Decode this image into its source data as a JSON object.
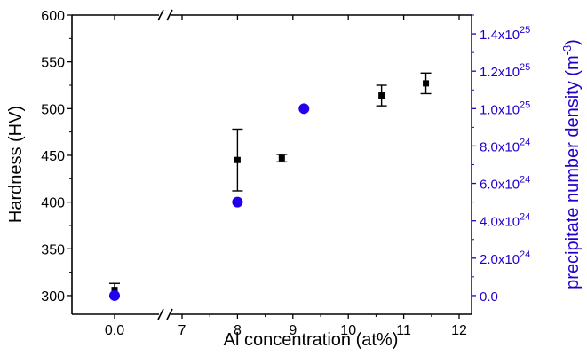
{
  "chart_data": {
    "type": "scatter",
    "xlabel": "Al concentration (at%)",
    "ylabel": "Hardness (HV)",
    "y2label_main": "precipitate number density (m",
    "y2label_sup": "-3",
    "y2label_close": ")",
    "axis_break_x": true,
    "xticks": [
      {
        "value": 0.0,
        "label": "0.0"
      },
      {
        "value": 7,
        "label": "7"
      },
      {
        "value": 8,
        "label": "8"
      },
      {
        "value": 9,
        "label": "9"
      },
      {
        "value": 10,
        "label": "10"
      },
      {
        "value": 11,
        "label": "11"
      },
      {
        "value": 12,
        "label": "12"
      }
    ],
    "ylim": [
      280,
      600
    ],
    "yticks": [
      {
        "value": 300,
        "label": "300"
      },
      {
        "value": 350,
        "label": "350"
      },
      {
        "value": 400,
        "label": "400"
      },
      {
        "value": 450,
        "label": "450"
      },
      {
        "value": 500,
        "label": "500"
      },
      {
        "value": 550,
        "label": "550"
      },
      {
        "value": 600,
        "label": "600"
      }
    ],
    "y2lim": [
      -0.1,
      1.5
    ],
    "y2ticks": [
      {
        "value": 0.0,
        "label": "0.0",
        "exp": ""
      },
      {
        "value": 0.2,
        "label": "2.0x10",
        "exp": "24"
      },
      {
        "value": 0.4,
        "label": "4.0x10",
        "exp": "24"
      },
      {
        "value": 0.6,
        "label": "6.0x10",
        "exp": "24"
      },
      {
        "value": 0.8,
        "label": "8.0x10",
        "exp": "24"
      },
      {
        "value": 1.0,
        "label": "1.0x10",
        "exp": "25"
      },
      {
        "value": 1.2,
        "label": "1.2x10",
        "exp": "25"
      },
      {
        "value": 1.4,
        "label": "1.4x10",
        "exp": "25"
      }
    ],
    "series": [
      {
        "axis": "left",
        "color": "#000000",
        "marker": "square",
        "points": [
          {
            "x": 0.0,
            "y": 306,
            "err": 7
          },
          {
            "x": 8.0,
            "y": 445,
            "err": 33
          },
          {
            "x": 8.8,
            "y": 447,
            "err": 4
          },
          {
            "x": 10.6,
            "y": 514,
            "err": 11
          },
          {
            "x": 11.4,
            "y": 527,
            "err": 11
          }
        ]
      },
      {
        "axis": "right",
        "color": "#2200ee",
        "marker": "circle",
        "points": [
          {
            "x": 0.0,
            "y": 0.0
          },
          {
            "x": 8.0,
            "y": 0.5
          },
          {
            "x": 9.2,
            "y": 1.0
          }
        ]
      }
    ],
    "colors": {
      "axis_left": "#000000",
      "axis_right": "#2200cc",
      "grid": false
    }
  }
}
